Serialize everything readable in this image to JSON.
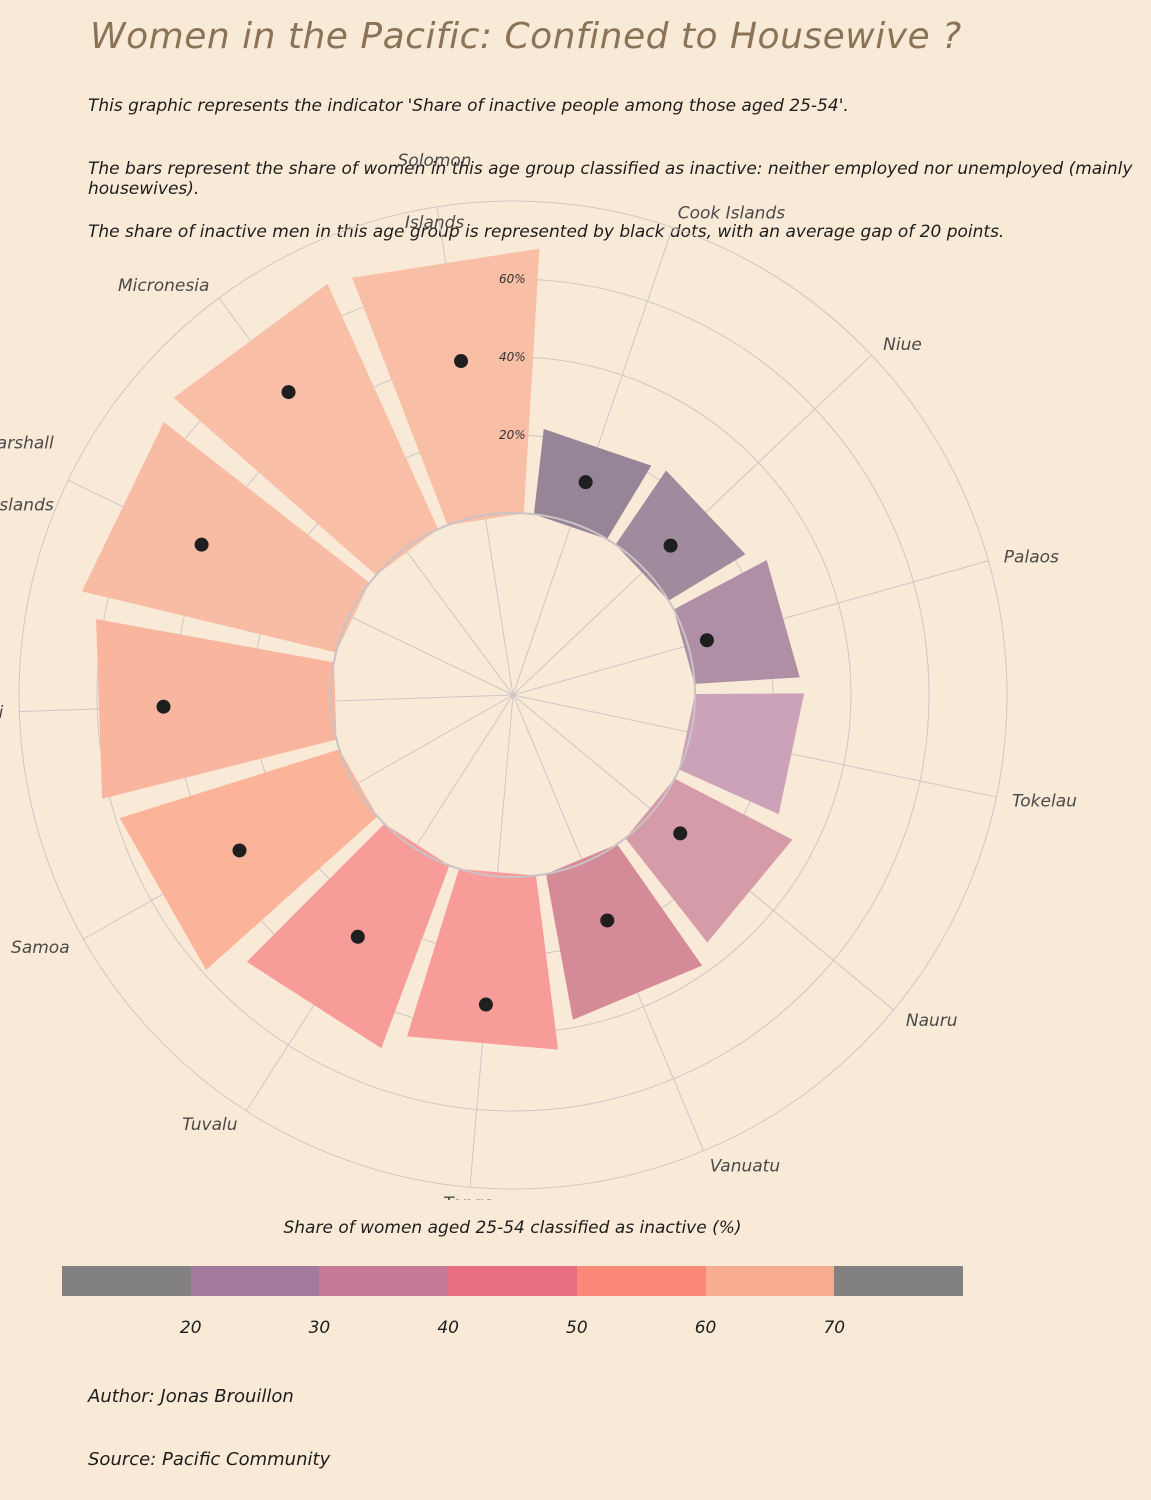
{
  "header": {
    "title": "Women in the Pacific: Confined to Housewive ?",
    "description": [
      "This graphic represents the indicator 'Share of inactive people among those aged 25-54'.",
      "The bars represent the share of women in this age group classified as inactive: neither employed nor unemployed (mainly housewives).",
      "The share of inactive men in this age group is represented by black dots, with an average gap of 20 points."
    ]
  },
  "chart_data": {
    "type": "bar",
    "layout": "circular",
    "categories": [
      "Cook Islands",
      "Niue",
      "Palaos",
      "Tokelau",
      "Nauru",
      "Vanuatu",
      "Tonga",
      "Tuvalu",
      "Samoa",
      "Kiribati",
      "Marshall Islands",
      "Micronesia",
      "Solomon Islands"
    ],
    "series": [
      {
        "name": "",
        "values": [
          22,
          23,
          27,
          28,
          34,
          38,
          45,
          50,
          59,
          62,
          67,
          69,
          68
        ],
        "colors": [
          "#968596",
          "#a08b9e",
          "#ae8fa6",
          "#cca2b9",
          "#d59ba9",
          "#d58a98",
          "#f79c99",
          "#f79c99",
          "#fbb39a",
          "#f9b59d",
          "#f8bca4",
          "#f8bfa6",
          "#f8bfa6"
        ]
      },
      {
        "name": "",
        "values": [
          11,
          9,
          5,
          null,
          9,
          16,
          33,
          27,
          34,
          43,
          42,
          50,
          40
        ],
        "marker": "dot",
        "color": "#1f1f1f"
      }
    ],
    "radial_axis": {
      "ticks": [
        20,
        40,
        60
      ],
      "tick_labels": [
        "20%",
        "40%",
        "60%"
      ],
      "range": [
        0,
        80
      ]
    },
    "grid": true,
    "legend": {
      "title": "Share of women aged 25-54 classified as inactive (%)",
      "position": "bottom",
      "colors": [
        "#828080",
        "#a27a9d",
        "#c67a98",
        "#e86f82",
        "#fb897a",
        "#f7ad8e",
        "#828080"
      ],
      "ticks": [
        20,
        30,
        40,
        50,
        60,
        70
      ]
    }
  },
  "footer": {
    "author": "Author: Jonas Brouillon",
    "source": "Source: Pacific Community"
  }
}
